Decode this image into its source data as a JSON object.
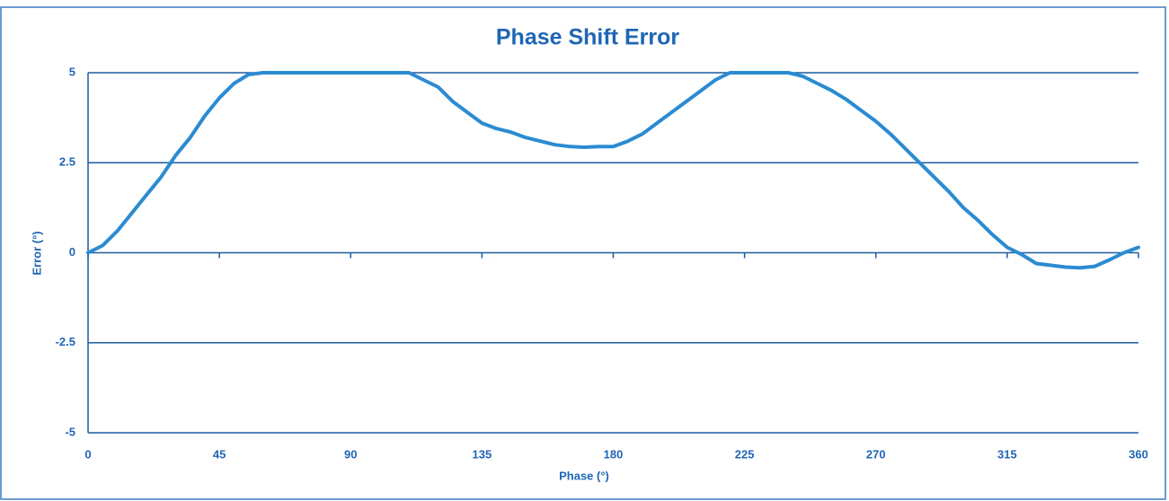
{
  "chart_data": {
    "type": "line",
    "title": "Phase Shift Error",
    "x_label": "Phase (°)",
    "y_label": "Error (°)",
    "x": [
      0,
      5,
      10,
      15,
      20,
      25,
      30,
      35,
      40,
      45,
      50,
      55,
      60,
      65,
      70,
      75,
      80,
      85,
      90,
      95,
      100,
      105,
      110,
      115,
      120,
      125,
      130,
      135,
      140,
      145,
      150,
      155,
      160,
      165,
      170,
      175,
      180,
      185,
      190,
      195,
      200,
      205,
      210,
      215,
      220,
      225,
      230,
      235,
      240,
      245,
      250,
      255,
      260,
      265,
      270,
      275,
      280,
      285,
      290,
      295,
      300,
      305,
      310,
      315,
      320,
      325,
      330,
      335,
      340,
      345,
      350,
      355,
      360
    ],
    "values": [
      0,
      0.2,
      0.6,
      1.1,
      1.6,
      2.1,
      2.7,
      3.2,
      3.8,
      4.3,
      4.7,
      4.95,
      5,
      5,
      5,
      5,
      5,
      5,
      5,
      5,
      5,
      5,
      5,
      4.8,
      4.6,
      4.2,
      3.9,
      3.6,
      3.45,
      3.35,
      3.2,
      3.1,
      3.0,
      2.95,
      2.93,
      2.95,
      2.95,
      3.1,
      3.3,
      3.6,
      3.9,
      4.2,
      4.5,
      4.8,
      5,
      5,
      5,
      5,
      5,
      4.9,
      4.7,
      4.5,
      4.25,
      3.95,
      3.65,
      3.3,
      2.9,
      2.5,
      2.1,
      1.7,
      1.25,
      0.9,
      0.5,
      0.15,
      -0.05,
      -0.3,
      -0.35,
      -0.4,
      -0.42,
      -0.38,
      -0.2,
      0,
      0.15
    ],
    "color": "#2b8bd2",
    "xlim": [
      0,
      360
    ],
    "xticks": [
      0,
      45,
      90,
      135,
      180,
      225,
      270,
      315,
      360
    ],
    "ylim": [
      -5,
      5
    ],
    "yticks": [
      -5,
      -2.5,
      0,
      2.5,
      5
    ],
    "grid": true
  }
}
